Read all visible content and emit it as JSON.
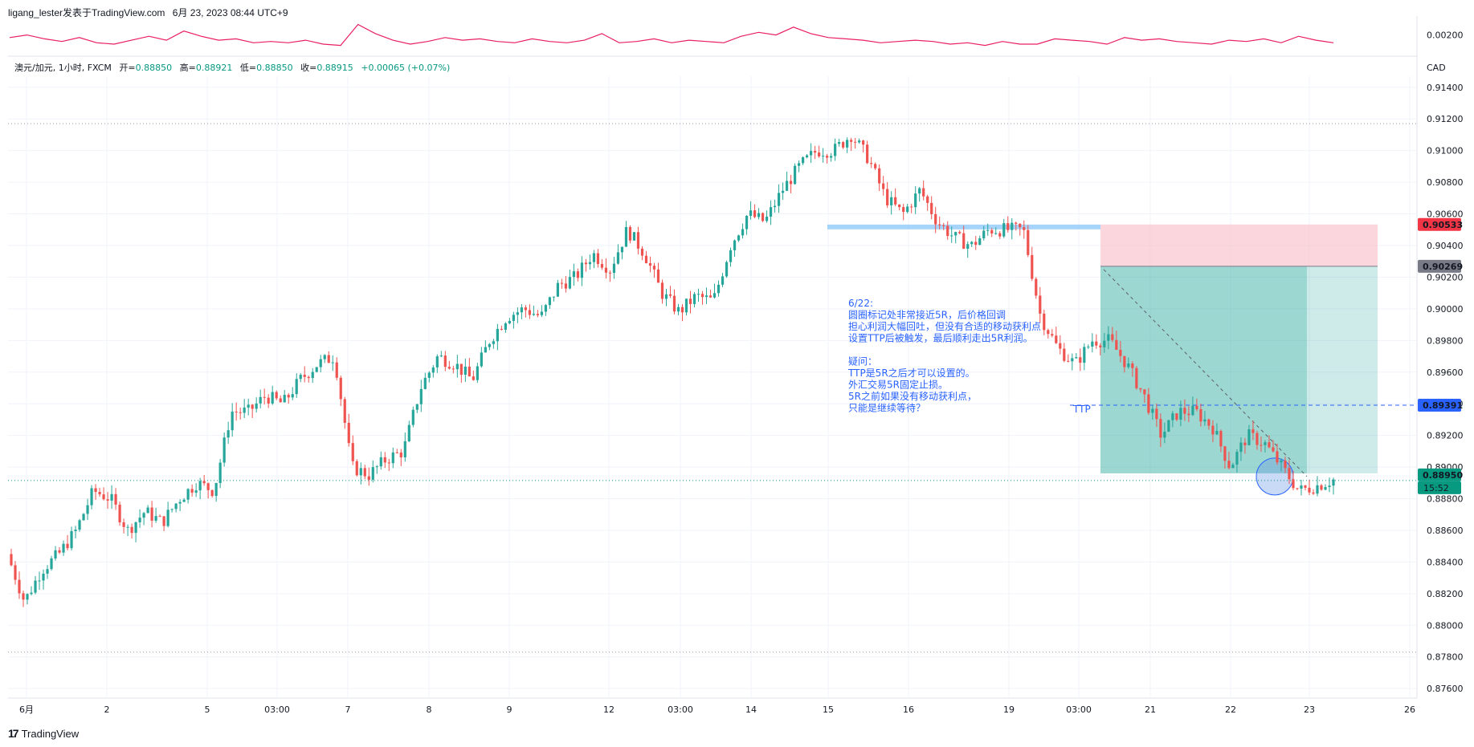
{
  "header": {
    "author": "ligang_lester发表于TradingView.com",
    "date": "6月 23, 2023 08:44 UTC+9"
  },
  "legend": {
    "symbol": "澳元/加元, 1小时, FXCM",
    "open_label": "开=",
    "open": "0.88850",
    "high_label": "高=",
    "high": "0.88921",
    "low_label": "低=",
    "low": "0.88850",
    "close_label": "收=",
    "close": "0.88915",
    "change": "+0.00065 (+0.07%)"
  },
  "currency_label": "CAD",
  "logo_text": "TradingView",
  "colors": {
    "up": "#26a69a",
    "down": "#ef5350",
    "indicator": "#e91e63",
    "note": "#2962ff",
    "stop_zone": "#f8bbc4",
    "target_zone": "#26a69a"
  },
  "chart_data": {
    "type": "candlestick",
    "symbol": "AUDCAD",
    "interval": "1h",
    "y_axis": {
      "ticks": [
        "0.91400",
        "0.91200",
        "0.91000",
        "0.90800",
        "0.90600",
        "0.90400",
        "0.90200",
        "0.90000",
        "0.89800",
        "0.89600",
        "0.89400",
        "0.89200",
        "0.89000",
        "0.88800",
        "0.88600",
        "0.88400",
        "0.88200",
        "0.88000",
        "0.87800",
        "0.87600"
      ],
      "range": [
        0.8755,
        0.9147
      ]
    },
    "x_axis": {
      "ticks": [
        "6月",
        "2",
        "5",
        "03:00",
        "7",
        "8",
        "9",
        "12",
        "03:00",
        "14",
        "15",
        "16",
        "19",
        "03:00",
        "21",
        "22",
        "23",
        "26"
      ]
    },
    "price_path": [
      0.8845,
      0.8815,
      0.8835,
      0.8845,
      0.886,
      0.8885,
      0.888,
      0.886,
      0.8872,
      0.8865,
      0.888,
      0.889,
      0.8885,
      0.8935,
      0.8935,
      0.8945,
      0.894,
      0.8955,
      0.8965,
      0.897,
      0.89,
      0.8895,
      0.8905,
      0.891,
      0.895,
      0.897,
      0.8965,
      0.8955,
      0.898,
      0.8995,
      0.9,
      0.8995,
      0.9015,
      0.902,
      0.9035,
      0.9025,
      0.905,
      0.9035,
      0.901,
      0.8998,
      0.9008,
      0.9005,
      0.904,
      0.906,
      0.9055,
      0.9075,
      0.909,
      0.91,
      0.91,
      0.911,
      0.9095,
      0.907,
      0.906,
      0.9075,
      0.9055,
      0.9045,
      0.904,
      0.905,
      0.905,
      0.905,
      0.8995,
      0.8975,
      0.8965,
      0.898,
      0.898,
      0.8965,
      0.8945,
      0.892,
      0.8935,
      0.8935,
      0.8925,
      0.89,
      0.892,
      0.8915,
      0.89,
      0.8885,
      0.8888,
      0.8892
    ],
    "last_price": "0.88950",
    "countdown": "15:52",
    "price_labels": [
      {
        "value": "0.90533",
        "color": "#f23645"
      },
      {
        "value": "0.90269",
        "color": "#787b86"
      },
      {
        "value": "0.89391",
        "color": "#2962ff"
      },
      {
        "value": "0.88950",
        "color": "#089981"
      }
    ],
    "position": {
      "side": "short",
      "entry": 0.90269,
      "stop": 0.90533,
      "target": 0.8896,
      "ttp": 0.89391
    },
    "ttp_label": "TTP",
    "note_lines": [
      "6/22:",
      "圆圈标记处非常接近5R，后价格回调",
      "担心利润大幅回吐，但没有合适的移动获利点",
      "设置TTP后被触发，最后顺利走出5R利润。",
      "",
      "疑问：",
      "TTP是5R之后才可以设置的。",
      "外汇交易5R固定止损。",
      "5R之前如果没有移动获利点，",
      "只能是继续等待？"
    ],
    "indicator": {
      "axis_label": "0.00200",
      "values": [
        0.0018,
        0.002,
        0.0017,
        0.0015,
        0.0018,
        0.0014,
        0.0013,
        0.0016,
        0.0019,
        0.0016,
        0.0023,
        0.0019,
        0.0016,
        0.0017,
        0.0014,
        0.0015,
        0.0014,
        0.0016,
        0.0013,
        0.0012,
        0.0028,
        0.0021,
        0.0016,
        0.0013,
        0.0015,
        0.0018,
        0.0016,
        0.0017,
        0.0015,
        0.0014,
        0.0017,
        0.0015,
        0.0014,
        0.0016,
        0.0021,
        0.0014,
        0.0015,
        0.0017,
        0.0014,
        0.0016,
        0.0015,
        0.0014,
        0.0019,
        0.0022,
        0.002,
        0.0026,
        0.0021,
        0.0018,
        0.0017,
        0.0016,
        0.0014,
        0.0015,
        0.0016,
        0.0015,
        0.0013,
        0.0014,
        0.0012,
        0.0015,
        0.0013,
        0.0013,
        0.0017,
        0.0016,
        0.0015,
        0.0013,
        0.0018,
        0.0016,
        0.0017,
        0.0015,
        0.0014,
        0.0013,
        0.0016,
        0.0015,
        0.0017,
        0.0014,
        0.0019,
        0.0016,
        0.0014
      ]
    }
  }
}
